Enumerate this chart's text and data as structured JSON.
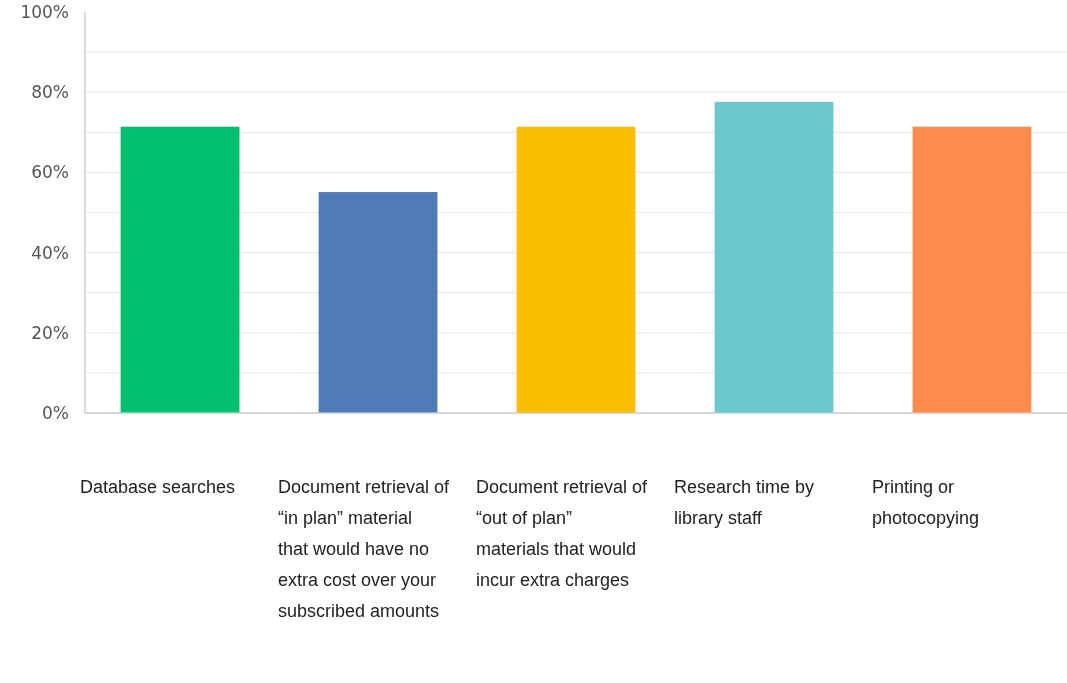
{
  "chart_data": {
    "type": "bar",
    "categories": [
      "Database searches",
      "Document retrieval of “in plan” material that would have no extra cost over your subscribed amounts",
      "Document retrieval of “out of plan” materials that would incur extra charges",
      "Research time by library staff",
      "Printing or photocopying"
    ],
    "values": [
      71.4,
      55.1,
      71.4,
      77.6,
      71.4
    ],
    "colors": [
      "#00bf6f",
      "#507cb6",
      "#f9be00",
      "#6bc8cd",
      "#ff8b4f"
    ],
    "ylim": [
      0,
      100
    ],
    "yticks": [
      {
        "value": 0,
        "label": "0%"
      },
      {
        "value": 10,
        "label": null
      },
      {
        "value": 20,
        "label": "20%"
      },
      {
        "value": 30,
        "label": null
      },
      {
        "value": 40,
        "label": "40%"
      },
      {
        "value": 50,
        "label": null
      },
      {
        "value": 60,
        "label": "60%"
      },
      {
        "value": 70,
        "label": null
      },
      {
        "value": 80,
        "label": "80%"
      },
      {
        "value": 90,
        "label": null
      },
      {
        "value": 100,
        "label": "100%"
      }
    ],
    "grid": "y"
  }
}
